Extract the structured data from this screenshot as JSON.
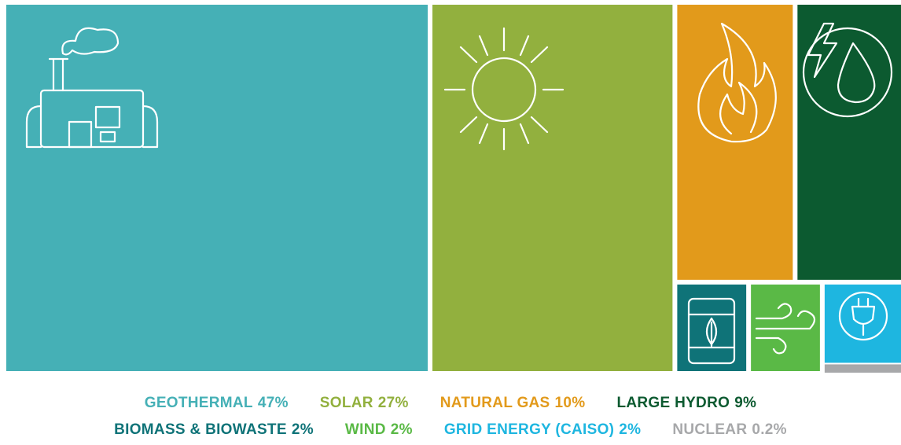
{
  "chart_data": {
    "type": "treemap",
    "categories": [
      "GEOTHERMAL",
      "SOLAR",
      "NATURAL GAS",
      "LARGE HYDRO",
      "BIOMASS & BIOWASTE",
      "WIND",
      "GRID ENERGY (CAISO)",
      "NUCLEAR"
    ],
    "values": [
      47,
      27,
      10,
      9,
      2,
      2,
      2,
      0.2
    ],
    "value_labels": [
      "47%",
      "27%",
      "10%",
      "9%",
      "2%",
      "2%",
      "2%",
      "0.2%"
    ],
    "colors": [
      "#45b0b6",
      "#92b03e",
      "#e29a1b",
      "#0c5a30",
      "#0f7378",
      "#5ab946",
      "#1eb6e0",
      "#a7a8aa"
    ]
  }
}
